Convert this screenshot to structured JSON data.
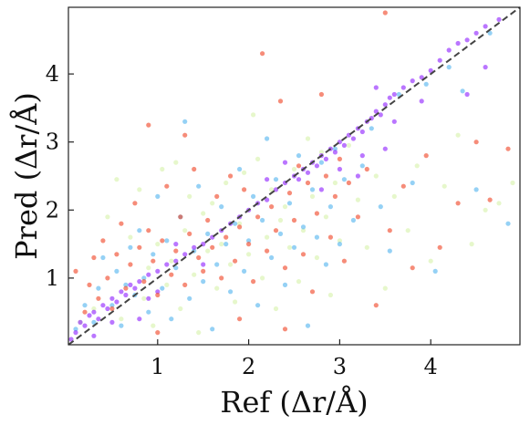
{
  "chart_data": {
    "type": "scatter",
    "title": "",
    "xlabel": "Ref (Δr/Å)",
    "ylabel": "Pred (Δr/Å)",
    "xlim": [
      0.02,
      4.98
    ],
    "ylim": [
      0.02,
      4.98
    ],
    "x_ticks": [
      "1",
      "2",
      "3",
      "4"
    ],
    "y_ticks": [
      "1",
      "2",
      "3",
      "4"
    ],
    "grid": false,
    "legend": "none",
    "reference_line": {
      "from": [
        0.02,
        0.02
      ],
      "to": [
        4.98,
        4.98
      ],
      "color": "#444444",
      "style": "dashed"
    },
    "series": [
      {
        "color": "#d6f2a8",
        "points": [
          [
            0.15,
            0.35
          ],
          [
            0.3,
            0.55
          ],
          [
            0.45,
            1.9
          ],
          [
            0.55,
            2.45
          ],
          [
            0.6,
            0.4
          ],
          [
            0.7,
            1.6
          ],
          [
            0.8,
            2.3
          ],
          [
            0.85,
            0.7
          ],
          [
            0.9,
            1.15
          ],
          [
            0.95,
            0.3
          ],
          [
            1.0,
            1.5
          ],
          [
            1.05,
            2.6
          ],
          [
            1.1,
            0.9
          ],
          [
            1.15,
            1.25
          ],
          [
            1.2,
            2.7
          ],
          [
            1.25,
            0.55
          ],
          [
            1.3,
            1.7
          ],
          [
            1.35,
            2.2
          ],
          [
            1.4,
            1.05
          ],
          [
            1.45,
            0.2
          ],
          [
            1.5,
            1.95
          ],
          [
            1.55,
            1.4
          ],
          [
            1.6,
            2.1
          ],
          [
            1.65,
            0.85
          ],
          [
            1.7,
            1.5
          ],
          [
            1.75,
            2.4
          ],
          [
            1.8,
            1.2
          ],
          [
            1.85,
            0.65
          ],
          [
            1.9,
            1.8
          ],
          [
            1.95,
            2.55
          ],
          [
            2.0,
            1.35
          ],
          [
            2.05,
            3.4
          ],
          [
            2.1,
            2.75
          ],
          [
            2.15,
            1.0
          ],
          [
            2.2,
            1.6
          ],
          [
            2.25,
            2.3
          ],
          [
            2.3,
            0.55
          ],
          [
            2.35,
            1.85
          ],
          [
            2.4,
            2.05
          ],
          [
            2.45,
            1.45
          ],
          [
            2.5,
            2.6
          ],
          [
            2.55,
            0.95
          ],
          [
            2.6,
            1.7
          ],
          [
            2.65,
            3.05
          ],
          [
            2.7,
            2.2
          ],
          [
            2.75,
            1.3
          ],
          [
            2.8,
            2.85
          ],
          [
            2.85,
            1.9
          ],
          [
            2.9,
            0.75
          ],
          [
            2.95,
            2.4
          ],
          [
            3.0,
            1.55
          ],
          [
            3.1,
            2.95
          ],
          [
            3.2,
            2.15
          ],
          [
            3.3,
            1.45
          ],
          [
            3.4,
            2.5
          ],
          [
            3.5,
            0.85
          ],
          [
            3.6,
            2.2
          ],
          [
            3.75,
            1.7
          ],
          [
            3.85,
            2.65
          ],
          [
            4.0,
            1.25
          ],
          [
            4.15,
            2.35
          ],
          [
            4.3,
            3.1
          ],
          [
            4.45,
            1.5
          ],
          [
            4.6,
            2.0
          ],
          [
            4.75,
            2.1
          ],
          [
            4.9,
            2.4
          ]
        ]
      },
      {
        "color": "#4fb3ee",
        "points": [
          [
            0.1,
            0.25
          ],
          [
            0.2,
            0.6
          ],
          [
            0.3,
            0.35
          ],
          [
            0.35,
            0.85
          ],
          [
            0.4,
            1.3
          ],
          [
            0.5,
            0.6
          ],
          [
            0.55,
            1.1
          ],
          [
            0.6,
            0.3
          ],
          [
            0.65,
            0.9
          ],
          [
            0.7,
            1.45
          ],
          [
            0.75,
            0.75
          ],
          [
            0.8,
            1.7
          ],
          [
            0.85,
            1.0
          ],
          [
            0.9,
            0.5
          ],
          [
            0.95,
            1.35
          ],
          [
            1.0,
            2.2
          ],
          [
            1.05,
            0.85
          ],
          [
            1.1,
            1.55
          ],
          [
            1.15,
            0.4
          ],
          [
            1.2,
            1.15
          ],
          [
            1.25,
            1.9
          ],
          [
            1.3,
            3.3
          ],
          [
            1.35,
            0.7
          ],
          [
            1.4,
            1.4
          ],
          [
            1.45,
            2.35
          ],
          [
            1.5,
            0.95
          ],
          [
            1.55,
            1.65
          ],
          [
            1.6,
            0.25
          ],
          [
            1.65,
            1.2
          ],
          [
            1.7,
            2.05
          ],
          [
            1.75,
            1.5
          ],
          [
            1.8,
            0.8
          ],
          [
            1.85,
            1.8
          ],
          [
            1.9,
            2.6
          ],
          [
            1.95,
            1.1
          ],
          [
            2.0,
            1.55
          ],
          [
            2.05,
            2.2
          ],
          [
            2.1,
            0.6
          ],
          [
            2.15,
            1.85
          ],
          [
            2.2,
            3.05
          ],
          [
            2.25,
            1.3
          ],
          [
            2.3,
            2.45
          ],
          [
            2.35,
            1.65
          ],
          [
            2.4,
            0.9
          ],
          [
            2.45,
            2.1
          ],
          [
            2.5,
            1.45
          ],
          [
            2.55,
            2.8
          ],
          [
            2.6,
            1.75
          ],
          [
            2.65,
            0.3
          ],
          [
            2.7,
            2.3
          ],
          [
            2.75,
            1.6
          ],
          [
            2.8,
            2.7
          ],
          [
            2.85,
            1.2
          ],
          [
            2.9,
            2.05
          ],
          [
            2.95,
            2.9
          ],
          [
            3.0,
            1.5
          ],
          [
            3.05,
            2.45
          ],
          [
            3.15,
            1.85
          ],
          [
            3.25,
            2.65
          ],
          [
            3.35,
            3.2
          ],
          [
            3.45,
            2.05
          ],
          [
            3.55,
            1.4
          ],
          [
            3.65,
            3.7
          ],
          [
            3.8,
            2.4
          ],
          [
            3.95,
            3.85
          ],
          [
            4.05,
            1.1
          ],
          [
            4.2,
            4.1
          ],
          [
            4.35,
            3.75
          ],
          [
            4.5,
            2.3
          ],
          [
            4.65,
            4.6
          ],
          [
            4.85,
            1.8
          ]
        ]
      },
      {
        "color": "#8c1aff",
        "points": [
          [
            0.05,
            0.1
          ],
          [
            0.1,
            0.2
          ],
          [
            0.15,
            0.35
          ],
          [
            0.2,
            0.3
          ],
          [
            0.25,
            0.45
          ],
          [
            0.3,
            0.5
          ],
          [
            0.35,
            0.4
          ],
          [
            0.4,
            0.6
          ],
          [
            0.45,
            0.55
          ],
          [
            0.5,
            0.7
          ],
          [
            0.55,
            0.65
          ],
          [
            0.6,
            0.8
          ],
          [
            0.65,
            0.75
          ],
          [
            0.7,
            0.9
          ],
          [
            0.75,
            0.85
          ],
          [
            0.8,
            0.95
          ],
          [
            0.9,
            1.05
          ],
          [
            1.0,
            1.1
          ],
          [
            1.1,
            1.2
          ],
          [
            1.2,
            1.25
          ],
          [
            1.3,
            1.35
          ],
          [
            1.4,
            1.45
          ],
          [
            1.5,
            1.5
          ],
          [
            1.6,
            1.6
          ],
          [
            1.7,
            1.7
          ],
          [
            1.8,
            1.8
          ],
          [
            1.9,
            1.9
          ],
          [
            2.0,
            2.0
          ],
          [
            2.1,
            2.1
          ],
          [
            2.2,
            2.15
          ],
          [
            2.3,
            2.3
          ],
          [
            2.4,
            2.4
          ],
          [
            2.5,
            2.5
          ],
          [
            2.55,
            2.45
          ],
          [
            2.6,
            2.6
          ],
          [
            2.65,
            2.55
          ],
          [
            2.7,
            2.7
          ],
          [
            2.75,
            2.65
          ],
          [
            2.8,
            2.8
          ],
          [
            2.85,
            2.75
          ],
          [
            2.9,
            2.9
          ],
          [
            2.95,
            2.85
          ],
          [
            3.0,
            3.0
          ],
          [
            3.05,
            2.95
          ],
          [
            3.1,
            3.1
          ],
          [
            3.15,
            3.05
          ],
          [
            3.2,
            3.2
          ],
          [
            3.25,
            3.15
          ],
          [
            3.3,
            3.3
          ],
          [
            3.35,
            3.35
          ],
          [
            3.4,
            3.45
          ],
          [
            3.45,
            3.4
          ],
          [
            3.5,
            3.55
          ],
          [
            3.55,
            3.65
          ],
          [
            3.6,
            3.7
          ],
          [
            3.7,
            3.8
          ],
          [
            3.8,
            3.9
          ],
          [
            3.9,
            3.95
          ],
          [
            4.0,
            4.05
          ],
          [
            4.1,
            4.2
          ],
          [
            4.2,
            4.35
          ],
          [
            4.3,
            4.45
          ],
          [
            4.4,
            4.5
          ],
          [
            4.5,
            4.6
          ],
          [
            4.6,
            4.7
          ],
          [
            4.75,
            4.8
          ],
          [
            3.2,
            2.5
          ],
          [
            3.0,
            2.6
          ],
          [
            2.8,
            2.3
          ],
          [
            3.4,
            3.8
          ],
          [
            3.6,
            3.3
          ],
          [
            3.5,
            2.9
          ],
          [
            2.4,
            2.7
          ],
          [
            2.2,
            2.45
          ],
          [
            1.5,
            1.2
          ],
          [
            1.2,
            1.5
          ],
          [
            0.9,
            0.7
          ],
          [
            0.5,
            0.35
          ],
          [
            0.3,
            0.15
          ],
          [
            0.8,
            0.4
          ],
          [
            1.0,
            0.8
          ],
          [
            4.4,
            3.7
          ],
          [
            4.6,
            4.1
          ],
          [
            3.9,
            3.6
          ],
          [
            3.25,
            2.8
          ]
        ]
      },
      {
        "color": "#f04020",
        "points": [
          [
            0.1,
            1.1
          ],
          [
            0.2,
            0.5
          ],
          [
            0.25,
            0.9
          ],
          [
            0.3,
            1.3
          ],
          [
            0.35,
            0.7
          ],
          [
            0.4,
            1.55
          ],
          [
            0.45,
            1.0
          ],
          [
            0.5,
            0.55
          ],
          [
            0.55,
            1.35
          ],
          [
            0.6,
            1.8
          ],
          [
            0.65,
            0.85
          ],
          [
            0.7,
            1.2
          ],
          [
            0.75,
            2.1
          ],
          [
            0.8,
            1.45
          ],
          [
            0.85,
            0.95
          ],
          [
            0.9,
            1.7
          ],
          [
            0.95,
            1.25
          ],
          [
            1.0,
            0.75
          ],
          [
            1.05,
            1.55
          ],
          [
            1.1,
            2.35
          ],
          [
            1.15,
            1.05
          ],
          [
            1.2,
            1.4
          ],
          [
            1.25,
            1.9
          ],
          [
            1.3,
            0.9
          ],
          [
            1.35,
            1.65
          ],
          [
            1.4,
            2.6
          ],
          [
            1.45,
            1.3
          ],
          [
            1.5,
            1.1
          ],
          [
            1.55,
            1.85
          ],
          [
            1.6,
            1.45
          ],
          [
            1.65,
            2.2
          ],
          [
            1.7,
            1.0
          ],
          [
            1.75,
            1.6
          ],
          [
            1.8,
            2.5
          ],
          [
            1.85,
            1.25
          ],
          [
            1.9,
            1.75
          ],
          [
            1.95,
            2.3
          ],
          [
            2.0,
            1.5
          ],
          [
            2.05,
            0.95
          ],
          [
            2.1,
            1.9
          ],
          [
            2.15,
            4.3
          ],
          [
            2.2,
            1.4
          ],
          [
            2.25,
            2.05
          ],
          [
            2.3,
            1.7
          ],
          [
            2.35,
            3.6
          ],
          [
            2.4,
            1.15
          ],
          [
            2.45,
            2.25
          ],
          [
            2.5,
            1.85
          ],
          [
            2.55,
            2.65
          ],
          [
            2.6,
            1.35
          ],
          [
            2.65,
            2.4
          ],
          [
            2.7,
            0.8
          ],
          [
            2.75,
            1.95
          ],
          [
            2.8,
            3.7
          ],
          [
            2.85,
            2.5
          ],
          [
            2.9,
            1.6
          ],
          [
            2.95,
            2.2
          ],
          [
            3.0,
            2.75
          ],
          [
            3.05,
            1.25
          ],
          [
            3.1,
            2.4
          ],
          [
            3.2,
            1.9
          ],
          [
            3.3,
            2.6
          ],
          [
            3.4,
            0.6
          ],
          [
            3.5,
            4.9
          ],
          [
            3.55,
            1.7
          ],
          [
            3.7,
            2.35
          ],
          [
            3.8,
            1.15
          ],
          [
            3.95,
            2.8
          ],
          [
            4.1,
            1.45
          ],
          [
            4.3,
            2.1
          ],
          [
            4.5,
            3.0
          ],
          [
            4.65,
            2.15
          ],
          [
            4.85,
            2.9
          ],
          [
            0.9,
            3.25
          ],
          [
            1.3,
            3.1
          ],
          [
            1.0,
            0.2
          ],
          [
            1.9,
            0.4
          ],
          [
            2.4,
            0.25
          ]
        ]
      }
    ]
  }
}
